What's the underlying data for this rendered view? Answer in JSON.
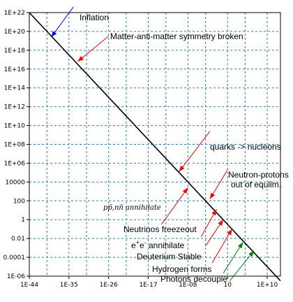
{
  "chart_data": {
    "type": "line",
    "title": "",
    "xlabel": "",
    "ylabel": "",
    "x_scale": "log",
    "y_scale": "log",
    "xlim_exp": [
      -44,
      13
    ],
    "ylim_exp": [
      -6,
      22
    ],
    "grid": true,
    "x_ticks": [
      {
        "label": "1E-44",
        "exp": -44
      },
      {
        "label": "1E-35",
        "exp": -35
      },
      {
        "label": "1E-26",
        "exp": -26
      },
      {
        "label": "1E-17",
        "exp": -17
      },
      {
        "label": "1E-08",
        "exp": -8
      },
      {
        "label": "10",
        "exp": 1
      },
      {
        "label": "1E+10",
        "exp": 10
      }
    ],
    "y_ticks": [
      {
        "label": "1E+22",
        "exp": 22
      },
      {
        "label": "1E+20",
        "exp": 20
      },
      {
        "label": "1E+18",
        "exp": 18
      },
      {
        "label": "1E+16",
        "exp": 16
      },
      {
        "label": "1E+14",
        "exp": 14
      },
      {
        "label": "1E+12",
        "exp": 12
      },
      {
        "label": "1E+10",
        "exp": 10
      },
      {
        "label": "1E+08",
        "exp": 8
      },
      {
        "label": "1E+06",
        "exp": 6
      },
      {
        "label": "10000",
        "exp": 4
      },
      {
        "label": "100",
        "exp": 2
      },
      {
        "label": "1",
        "exp": 0
      },
      {
        "label": "0.01",
        "exp": -2
      },
      {
        "label": "0.0001",
        "exp": -4
      },
      {
        "label": "1E-06",
        "exp": -6
      }
    ],
    "series": [
      {
        "color": "#000000",
        "x_exp": [
          -44,
          13
        ],
        "y_exp": [
          22,
          -6.5
        ]
      }
    ],
    "annotations": [
      {
        "text": "Inflation",
        "style": "sans",
        "color": "#0000ff",
        "tip_exp": [
          -39,
          19.4
        ],
        "tail_exp": [
          -34,
          22.6
        ]
      },
      {
        "text": "Matter-anti-matter symmetry broken",
        "style": "sans",
        "color": "#ff0000",
        "tip_exp": [
          -33,
          16.8
        ],
        "tail_exp": [
          -26,
          19.5
        ]
      },
      {
        "text": "quarks -> nucleons",
        "style": "sans",
        "color": "#ff0000",
        "tip_exp": [
          -10,
          5.1
        ],
        "tail_exp": [
          -3,
          9.4
        ]
      },
      {
        "text": "Neutron-protons",
        "style": "sans",
        "color": "#ff0000",
        "tip_exp": [
          -3,
          2.2
        ],
        "tail_exp": [
          1,
          5.3
        ]
      },
      {
        "text": "out of equilm.",
        "style": "sans",
        "color": "#ff0000"
      },
      {
        "text": "pp̄,nn̄ annihilate",
        "style": "serif",
        "color": "#ff0000",
        "tip_exp": [
          -8,
          3.4
        ],
        "tail_exp": [
          -14,
          -0.5
        ]
      },
      {
        "text": "Neutrinos freezeout",
        "style": "sans",
        "color": "#ff0000",
        "tip_exp": [
          -1.5,
          1.1
        ],
        "tail_exp": [
          -5,
          -1.8
        ]
      },
      {
        "text": "e+e- annihilate",
        "style": "sans",
        "color": "#ff0000",
        "tip_exp": [
          0,
          0
        ],
        "tail_exp": [
          -4,
          -2.8
        ]
      },
      {
        "text": "Deuterium Stable",
        "style": "sans",
        "color": "#ff0000",
        "tip_exp": [
          2,
          -1
        ],
        "tail_exp": [
          -2.5,
          -4.6
        ]
      },
      {
        "text": "Hydrogen forms",
        "style": "sans",
        "color": "#008000",
        "tip_exp": [
          4.5,
          -2.4
        ],
        "tail_exp": [
          0,
          -5.7
        ]
      },
      {
        "text": "Photons decouple",
        "style": "sans",
        "color": "#008000",
        "tip_exp": [
          7,
          -3.3
        ],
        "tail_exp": [
          1.5,
          -6.5
        ]
      }
    ]
  }
}
